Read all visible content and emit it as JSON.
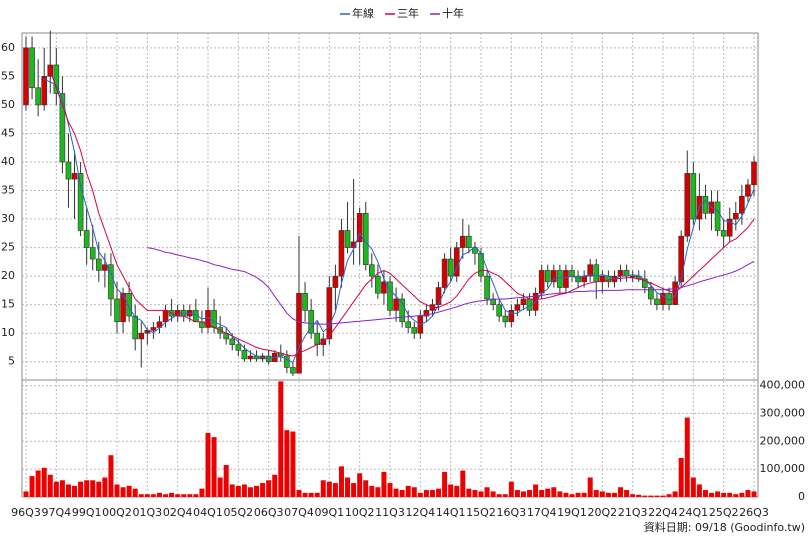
{
  "chart_data": {
    "type": "candlestick",
    "legend": "top",
    "grid": true,
    "source": "資料日期: 09/18  (Goodinfo.tw)",
    "up_color": "#d60000",
    "down_color": "#1db81d",
    "categories": [
      "96Q3",
      null,
      null,
      null,
      null,
      "97Q4",
      null,
      null,
      null,
      null,
      "99Q1",
      null,
      null,
      null,
      null,
      "00Q2",
      null,
      null,
      null,
      null,
      "01Q3",
      null,
      null,
      null,
      null,
      "02Q4",
      null,
      null,
      null,
      null,
      "04Q1",
      null,
      null,
      null,
      null,
      "05Q2",
      null,
      null,
      null,
      null,
      "06Q3",
      null,
      null,
      null,
      null,
      "07Q4",
      null,
      null,
      null,
      null,
      "09Q1",
      null,
      null,
      null,
      null,
      "10Q2",
      null,
      null,
      null,
      null,
      "11Q3",
      null,
      null,
      null,
      null,
      "12Q4",
      null,
      null,
      null,
      null,
      "14Q1",
      null,
      null,
      null,
      null,
      "15Q2",
      null,
      null,
      null,
      null,
      "16Q3",
      null,
      null,
      null,
      null,
      "17Q4",
      null,
      null,
      null,
      null,
      "19Q1",
      null,
      null,
      null,
      null,
      "20Q2",
      null,
      null,
      null,
      null,
      "21Q3",
      null,
      null,
      null,
      null,
      "22Q4",
      null,
      null,
      null,
      null,
      "24Q1",
      null,
      null,
      null,
      null,
      "25Q2",
      null,
      null,
      null,
      null,
      "26Q3"
    ],
    "open": [
      50,
      60,
      53,
      50,
      55,
      57,
      52,
      40,
      37,
      38,
      28,
      25,
      23,
      21,
      22,
      16,
      12,
      17,
      13,
      9,
      10,
      10.5,
      11,
      12,
      14,
      13,
      14,
      13,
      14,
      12,
      11,
      14,
      11,
      10,
      9,
      8,
      7,
      5.5,
      6,
      5.5,
      6,
      5,
      6.5,
      6,
      4,
      3,
      17,
      14,
      10,
      8,
      9,
      18,
      20,
      28,
      25,
      26,
      31,
      22,
      20,
      17,
      19,
      14,
      16,
      12,
      11,
      10,
      13,
      14,
      15,
      18,
      23,
      20,
      25,
      27,
      25,
      24,
      20,
      16,
      15,
      13,
      12,
      14,
      15,
      16,
      14,
      17,
      21,
      19,
      21,
      18,
      21,
      20,
      19,
      20,
      22,
      19,
      20,
      19,
      20,
      21,
      20,
      20,
      19.5,
      18,
      16,
      15,
      17,
      15,
      19,
      27,
      38,
      30,
      34,
      31,
      33,
      28,
      27,
      30,
      31,
      34,
      36
    ],
    "high": [
      62,
      62,
      58,
      60,
      63,
      60,
      55,
      45,
      42,
      40,
      32,
      29,
      26,
      24,
      24,
      19,
      18,
      19,
      15,
      12,
      11,
      12,
      13,
      15,
      16,
      15,
      15,
      15,
      16,
      14,
      18,
      16,
      13,
      11,
      10,
      9,
      8,
      7,
      7,
      6.5,
      7,
      7,
      8,
      7,
      5,
      27,
      19,
      16,
      12,
      10,
      20,
      22,
      30,
      33,
      37,
      32,
      33,
      24,
      22,
      21,
      20,
      18,
      17,
      14,
      12,
      14,
      15,
      16,
      19,
      24,
      25,
      26,
      30,
      29,
      26,
      25,
      21,
      17,
      16,
      14,
      15,
      16,
      17,
      17,
      18,
      22,
      22,
      22,
      22,
      22,
      22,
      21,
      21,
      23,
      23,
      21,
      21,
      21,
      22,
      22,
      21,
      21,
      21,
      19,
      17,
      18,
      18,
      20,
      28,
      42,
      40,
      38,
      36,
      35,
      35,
      30,
      32,
      33,
      36,
      37,
      41
    ],
    "low": [
      49,
      51,
      48,
      49,
      52,
      50,
      38,
      32,
      30,
      27,
      22,
      21,
      19,
      18,
      13,
      10,
      10,
      12,
      7,
      4,
      8,
      9,
      10,
      11,
      12,
      12,
      12,
      12,
      12,
      10,
      10,
      10,
      9,
      8,
      7,
      6,
      5,
      5,
      5,
      5,
      4.5,
      5,
      5,
      3,
      2.5,
      3,
      12,
      9,
      6,
      6,
      8,
      14,
      18,
      24,
      22,
      22,
      21,
      18,
      16,
      15,
      13,
      12,
      11,
      10,
      9,
      9,
      12,
      13,
      14,
      17,
      19,
      19,
      23,
      24,
      22,
      19,
      15,
      14,
      12,
      11,
      11,
      13,
      14,
      13,
      13,
      16,
      18,
      18,
      17,
      17,
      19,
      18,
      18,
      19,
      16,
      17,
      18,
      18,
      19,
      19,
      19,
      19,
      17,
      15,
      14,
      14,
      14,
      15,
      18,
      26,
      29,
      28,
      30,
      28,
      27,
      25,
      26,
      28,
      29,
      33,
      34
    ],
    "close": [
      60,
      53,
      50,
      55,
      57,
      52,
      40,
      37,
      38,
      28,
      25,
      23,
      21,
      22,
      16,
      12,
      17,
      13,
      9,
      10,
      10.5,
      11,
      12,
      14,
      13,
      14,
      13,
      14,
      12,
      11,
      14,
      11,
      10,
      9,
      8,
      7,
      5.5,
      6,
      5.5,
      6,
      5,
      6.5,
      6,
      4,
      3,
      17,
      14,
      10,
      8,
      9,
      18,
      20,
      28,
      25,
      26,
      31,
      22,
      20,
      17,
      19,
      14,
      16,
      12,
      11,
      10,
      13,
      14,
      15,
      18,
      23,
      20,
      25,
      27,
      25,
      24,
      20,
      16,
      15,
      13,
      12,
      14,
      15,
      16,
      14,
      17,
      21,
      19,
      21,
      18,
      21,
      20,
      19,
      20,
      22,
      19,
      20,
      19,
      20,
      21,
      20,
      20,
      19.5,
      18,
      16,
      15,
      17,
      15,
      19,
      27,
      38,
      30,
      34,
      31,
      33,
      28,
      27,
      30,
      31,
      34,
      36,
      40
    ],
    "ylim": [
      1.8,
      62.6
    ],
    "yticks": [
      5,
      10,
      15,
      20,
      25,
      30,
      35,
      40,
      45,
      50,
      55,
      60
    ],
    "series": [
      {
        "name": "年線",
        "color": "#2b62c9",
        "values": [
          null,
          null,
          null,
          54.5,
          54,
          53.5,
          51,
          46.5,
          41.75,
          35.75,
          32,
          28.5,
          24.25,
          22.75,
          20.5,
          17.75,
          16.75,
          14.5,
          12.75,
          12.25,
          10.6,
          10.1,
          10.9,
          11.9,
          12.6,
          13.25,
          13.5,
          13.5,
          13.25,
          12.5,
          12.75,
          12,
          11.5,
          11,
          9.5,
          8.5,
          7.4,
          6.6,
          6,
          5.75,
          5.6,
          5.75,
          5.9,
          5.4,
          4.9,
          7.5,
          9.5,
          11,
          12.25,
          10.25,
          11.25,
          13.75,
          18.75,
          22.75,
          24.75,
          27.5,
          26,
          24.75,
          22.5,
          19.5,
          17.5,
          16.5,
          15.25,
          13.25,
          12.25,
          11.5,
          12,
          13,
          15,
          17.5,
          19,
          21.5,
          23.75,
          24.25,
          25.25,
          24,
          21.25,
          18.75,
          16,
          14,
          13.5,
          13.5,
          14.25,
          14.75,
          15.5,
          17,
          17.75,
          19.5,
          19.75,
          19.75,
          20,
          19.5,
          20,
          20.25,
          20,
          20.25,
          20,
          19.5,
          20,
          20,
          20.25,
          20.1,
          19.4,
          18.4,
          17.1,
          16.5,
          15.75,
          16.5,
          19.5,
          24.75,
          28.5,
          32.25,
          33.25,
          32,
          31.5,
          29.75,
          29.5,
          29,
          30.5,
          32.75,
          35.25
        ]
      },
      {
        "name": "三年",
        "color": "#d8004c",
        "values": [
          null,
          null,
          null,
          null,
          56,
          53,
          50,
          47,
          45,
          42,
          38,
          35,
          31,
          28,
          25,
          22,
          20,
          18,
          16,
          15,
          14,
          14,
          14,
          14,
          13.5,
          13,
          13,
          12.5,
          12,
          12,
          11.5,
          11,
          10.5,
          10,
          9.5,
          9,
          8.5,
          8,
          7.5,
          7.2,
          7,
          6.8,
          6.5,
          6.2,
          6,
          6.5,
          7,
          7.5,
          8,
          8.5,
          9.5,
          11,
          12.5,
          14,
          15.5,
          17,
          18.5,
          19.5,
          20.5,
          21,
          20.5,
          19.5,
          18.5,
          17.5,
          16.5,
          15.5,
          15,
          14.5,
          14.5,
          15,
          15.5,
          16.5,
          18,
          19.5,
          20.5,
          21,
          21,
          20.5,
          20,
          19,
          18,
          17,
          16.5,
          16,
          16,
          16,
          16.2,
          16.5,
          16.8,
          17,
          17.5,
          18,
          18.5,
          18.8,
          19,
          19.2,
          19.3,
          19.5,
          19.6,
          19.7,
          19.7,
          19.5,
          19.2,
          18.8,
          18.3,
          17.8,
          17.4,
          17.2,
          18,
          19,
          20,
          21,
          22,
          23,
          24,
          25,
          26,
          26.5,
          27.5,
          28.5,
          30
        ]
      },
      {
        "name": "十年",
        "color": "#8a22c8",
        "values": [
          null,
          null,
          null,
          null,
          null,
          null,
          null,
          null,
          null,
          null,
          null,
          null,
          null,
          null,
          null,
          null,
          null,
          null,
          null,
          null,
          25,
          24.8,
          24.5,
          24.2,
          24,
          23.7,
          23.5,
          23.2,
          23,
          22.7,
          22.4,
          22,
          21.8,
          21.5,
          21.2,
          21,
          20.8,
          20.3,
          19.8,
          19,
          18,
          16.5,
          15,
          13.5,
          12.5,
          12,
          11.8,
          11.7,
          11.6,
          11.6,
          11.6,
          11.7,
          11.8,
          11.9,
          12,
          12.1,
          12.2,
          12.3,
          12.4,
          12.5,
          12.6,
          12.7,
          12.8,
          12.9,
          13,
          13.1,
          13.2,
          13.4,
          13.7,
          14,
          14.3,
          14.6,
          15,
          15.3,
          15.5,
          15.7,
          15.8,
          15.9,
          16,
          16,
          16.1,
          16.2,
          16.3,
          16.4,
          16.5,
          16.6,
          16.8,
          16.9,
          17,
          17.1,
          17.2,
          17.3,
          17.3,
          17.4,
          17.4,
          17.5,
          17.5,
          17.5,
          17.5,
          17.6,
          17.6,
          17.6,
          17.6,
          17.6,
          17.6,
          17.6,
          17.7,
          17.8,
          18,
          18.3,
          18.6,
          19,
          19.3,
          19.6,
          19.9,
          20.2,
          20.5,
          20.9,
          21.4,
          22,
          22.6
        ]
      }
    ],
    "volume": {
      "color": "#ee0000",
      "values": [
        20000,
        75000,
        95000,
        105000,
        80000,
        55000,
        60000,
        45000,
        40000,
        55000,
        60000,
        60000,
        55000,
        70000,
        150000,
        45000,
        35000,
        40000,
        30000,
        10000,
        10000,
        10000,
        15000,
        10000,
        15000,
        10000,
        10000,
        10000,
        10000,
        30000,
        230000,
        215000,
        70000,
        115000,
        45000,
        40000,
        45000,
        35000,
        40000,
        50000,
        60000,
        80000,
        415000,
        240000,
        235000,
        25000,
        15000,
        15000,
        15000,
        60000,
        55000,
        50000,
        110000,
        70000,
        50000,
        85000,
        60000,
        40000,
        35000,
        90000,
        50000,
        30000,
        25000,
        40000,
        35000,
        15000,
        25000,
        25000,
        30000,
        90000,
        45000,
        40000,
        95000,
        30000,
        25000,
        20000,
        35000,
        20000,
        10000,
        10000,
        55000,
        25000,
        20000,
        25000,
        45000,
        25000,
        30000,
        35000,
        20000,
        15000,
        10000,
        15000,
        15000,
        70000,
        25000,
        20000,
        15000,
        15000,
        35000,
        25000,
        10000,
        8000,
        5000,
        5000,
        5000,
        5000,
        10000,
        20000,
        140000,
        285000,
        70000,
        45000,
        25000,
        15000,
        20000,
        15000,
        15000,
        10000,
        15000,
        25000,
        20000
      ],
      "ylim": [
        0,
        420000
      ],
      "yticks": [
        0,
        {
          "value": 100000,
          "label": "100,000"
        },
        {
          "value": 200000,
          "label": "200,000"
        },
        {
          "value": 300000,
          "label": "300,000"
        },
        {
          "value": 400000,
          "label": "400,000"
        }
      ]
    }
  }
}
